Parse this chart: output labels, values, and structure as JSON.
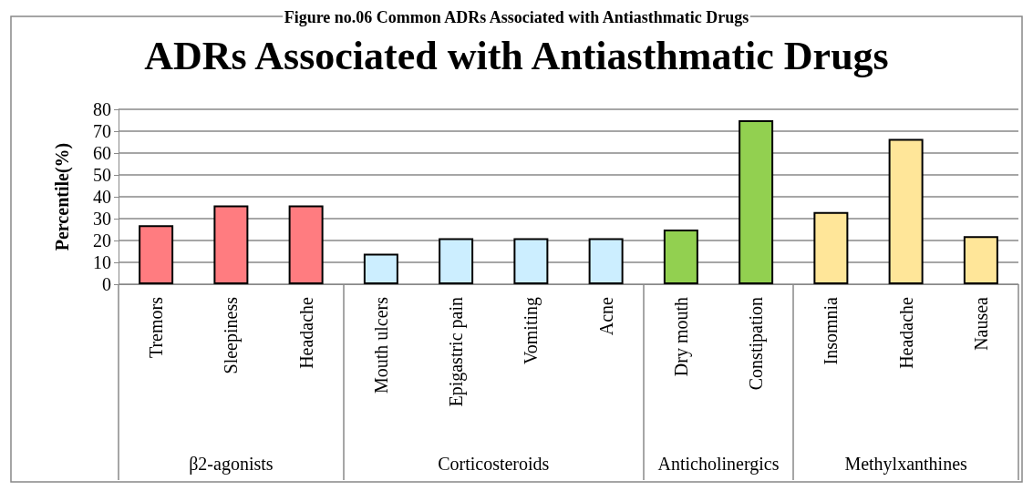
{
  "chart_data": {
    "type": "bar",
    "title": "ADRs Associated with Antiasthmatic Drugs",
    "ylabel": "Percentile(%)",
    "annotations": [
      "Figure no.06 Common ADRs Associated with Antiasthmatic Drugs",
      "β2-agonists",
      "Corticosteroids",
      "Anticholinergics",
      "Methylxanthines"
    ],
    "categories": [
      "Tremors",
      "Sleepiness",
      "Headache",
      "Mouth ulcers",
      "Epigastric pain",
      "Vomiting",
      "Acne",
      "Dry mouth",
      "Constipation",
      "Insomnia",
      "Headache",
      "Nausea"
    ],
    "values": [
      27,
      36,
      36,
      14,
      21,
      21,
      21,
      25,
      75,
      33,
      66.5,
      22
    ],
    "colors": [
      "#ff7c80",
      "#ff7c80",
      "#ff7c80",
      "#cceeff",
      "#cceeff",
      "#cceeff",
      "#cceeff",
      "#92d050",
      "#92d050",
      "#ffe699",
      "#ffe699",
      "#ffe699"
    ],
    "ylim": [
      0,
      80
    ],
    "yticks": [
      0,
      10,
      20,
      30,
      40,
      50,
      60,
      70,
      80
    ],
    "grid": "y"
  }
}
